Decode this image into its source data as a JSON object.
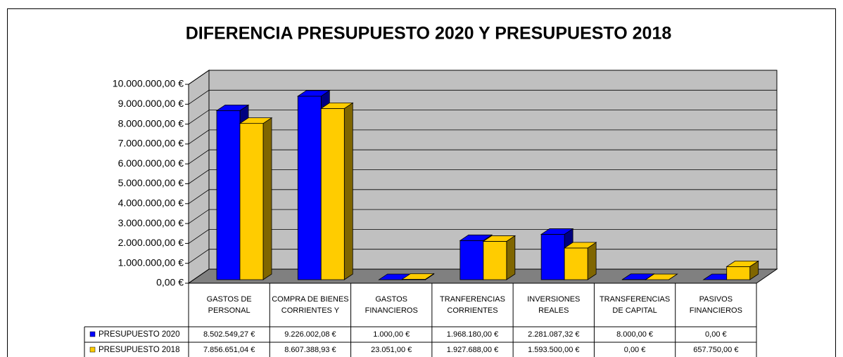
{
  "chart_data": {
    "type": "bar3d",
    "title": "DIFERENCIA PRESUPUESTO 2020 Y PRESUPUESTO 2018",
    "categories": [
      "GASTOS DE PERSONAL",
      "COMPRA DE BIENES CORRIENTES Y",
      "GASTOS FINANCIEROS",
      "TRANFERENCIAS CORRIENTES",
      "INVERSIONES REALES",
      "TRANSFERENCIAS DE CAPITAL",
      "PASIVOS FINANCIEROS"
    ],
    "series": [
      {
        "name": "PRESUPUESTO 2020",
        "color": "#0000ff",
        "side": "#000080",
        "values": [
          8502549.27,
          9226002.08,
          1000,
          1968180,
          2281087.32,
          8000,
          0
        ],
        "value_labels": [
          "8.502.549,27 €",
          "9.226.002,08 €",
          "1.000,00 €",
          "1.968.180,00 €",
          "2.281.087,32 €",
          "8.000,00 €",
          "0,00 €"
        ]
      },
      {
        "name": "PRESUPUESTO 2018",
        "color": "#ffcc00",
        "side": "#806600",
        "values": [
          7856651.04,
          8607388.93,
          23051,
          1927688,
          1593500,
          0,
          657750
        ],
        "value_labels": [
          "7.856.651,04 €",
          "8.607.388,93 €",
          "23.051,00 €",
          "1.927.688,00 €",
          "1.593.500,00 €",
          "0,00 €",
          "657.750,00 €"
        ]
      }
    ],
    "ylim": [
      0,
      10000000
    ],
    "yticks": [
      {
        "value": 0,
        "label": "0,00 €"
      },
      {
        "value": 1000000,
        "label": "1.000.000,00 €"
      },
      {
        "value": 2000000,
        "label": "2.000.000,00 €"
      },
      {
        "value": 3000000,
        "label": "3.000.000,00 €"
      },
      {
        "value": 4000000,
        "label": "4.000.000,00 €"
      },
      {
        "value": 5000000,
        "label": "5.000.000,00 €"
      },
      {
        "value": 6000000,
        "label": "6.000.000,00 €"
      },
      {
        "value": 7000000,
        "label": "7.000.000,00 €"
      },
      {
        "value": 8000000,
        "label": "8.000.000,00 €"
      },
      {
        "value": 9000000,
        "label": "9.000.000,00 €"
      },
      {
        "value": 10000000,
        "label": "10.000.000,00 €"
      }
    ],
    "grid": true
  }
}
